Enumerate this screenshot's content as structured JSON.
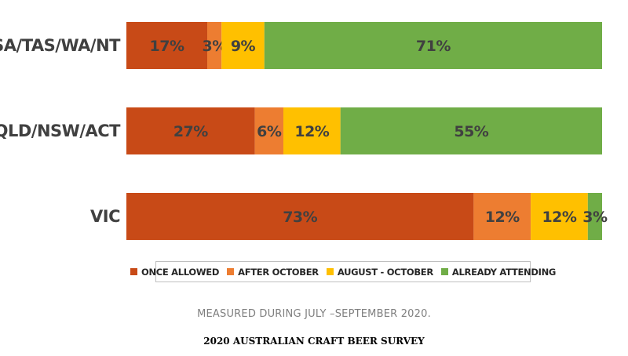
{
  "chart_data": {
    "type": "bar",
    "orientation": "horizontal",
    "stacked": true,
    "categories": [
      "SA/TAS/WA/NT",
      "QLD/NSW/ACT",
      "VIC"
    ],
    "series": [
      {
        "name": "ONCE ALLOWED",
        "color": "#c84a17",
        "values": [
          17,
          27,
          73
        ],
        "labels": [
          "17%",
          "27%",
          "73%"
        ]
      },
      {
        "name": "AFTER OCTOBER",
        "color": "#ed7d31",
        "values": [
          3,
          6,
          12
        ],
        "labels": [
          "3%",
          "6%",
          "12%"
        ]
      },
      {
        "name": "AUGUST - OCTOBER",
        "color": "#ffc000",
        "values": [
          9,
          12,
          12
        ],
        "labels": [
          "9%",
          "12%",
          "12%"
        ]
      },
      {
        "name": "ALREADY ATTENDING",
        "color": "#70ad47",
        "values": [
          71,
          55,
          3
        ],
        "labels": [
          "71%",
          "55%",
          "3%"
        ]
      }
    ],
    "xlim": [
      0,
      100
    ],
    "grid": false,
    "legend_position": "bottom"
  },
  "note": "MEASURED DURING JULY –SEPTEMBER 2020.",
  "source": "2020 AUSTRALIAN CRAFT BEER SURVEY"
}
